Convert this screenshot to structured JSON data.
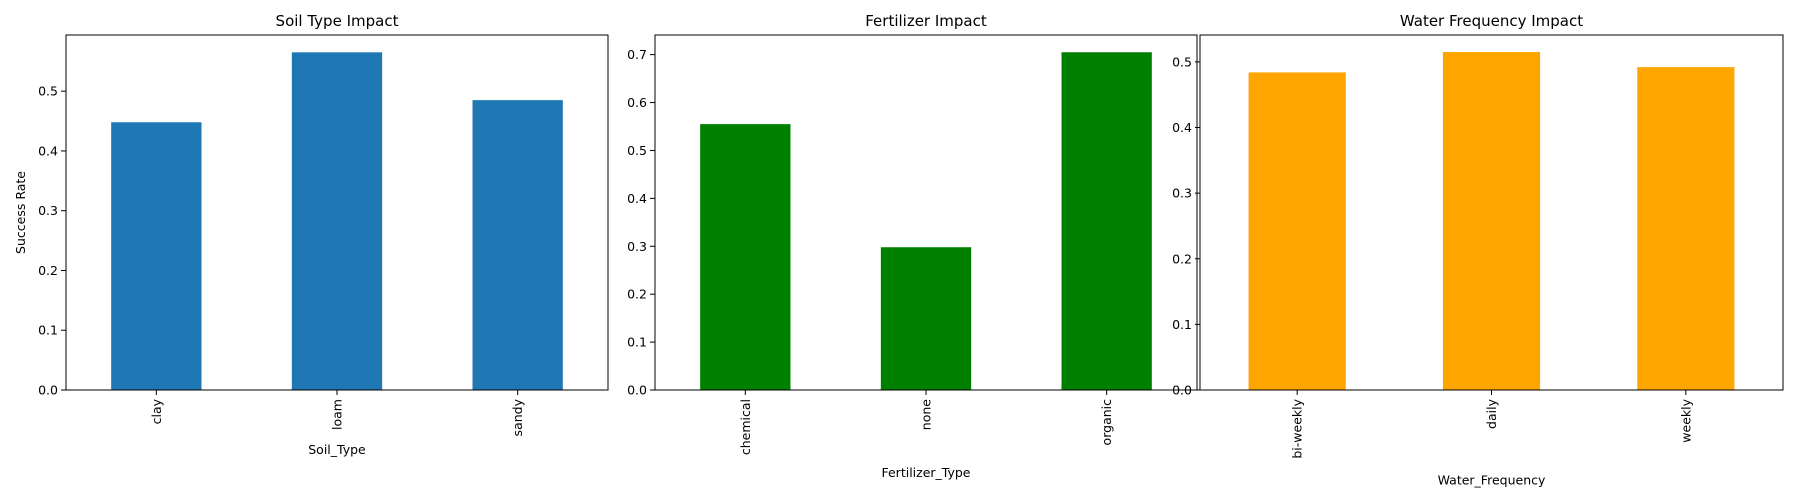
{
  "chart_data": [
    {
      "type": "bar",
      "title": "Soil Type Impact",
      "xlabel": "Soil_Type",
      "ylabel": "Success Rate",
      "categories": [
        "clay",
        "loam",
        "sandy"
      ],
      "values": [
        0.448,
        0.565,
        0.485
      ],
      "color": "#1f77b4",
      "ylim": [
        0,
        0.594
      ],
      "yticks": [
        "0.0",
        "0.1",
        "0.2",
        "0.3",
        "0.4",
        "0.5"
      ],
      "grid": false,
      "legend": "none"
    },
    {
      "type": "bar",
      "title": "Fertilizer Impact",
      "xlabel": "Fertilizer_Type",
      "ylabel": "",
      "categories": [
        "chemical",
        "none",
        "organic"
      ],
      "values": [
        0.555,
        0.298,
        0.705
      ],
      "color": "#008000",
      "ylim": [
        0,
        0.741
      ],
      "yticks": [
        "0.0",
        "0.1",
        "0.2",
        "0.3",
        "0.4",
        "0.5",
        "0.6",
        "0.7"
      ],
      "grid": false,
      "legend": "none"
    },
    {
      "type": "bar",
      "title": "Water Frequency Impact",
      "xlabel": "Water_Frequency",
      "ylabel": "",
      "categories": [
        "bi-weekly",
        "daily",
        "weekly"
      ],
      "values": [
        0.484,
        0.515,
        0.492
      ],
      "color": "#ffa500",
      "ylim": [
        0,
        0.541
      ],
      "yticks": [
        "0.0",
        "0.1",
        "0.2",
        "0.3",
        "0.4",
        "0.5"
      ],
      "grid": false,
      "legend": "none"
    }
  ]
}
